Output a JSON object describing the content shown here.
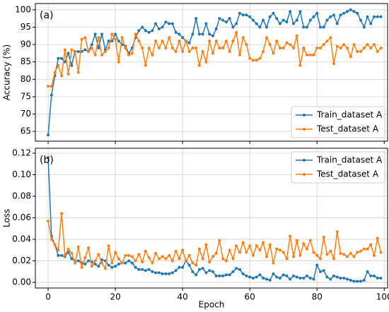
{
  "chart_data": [
    {
      "type": "line",
      "panel_label": "(a)",
      "ylabel": "Accuracy (%)",
      "x": [
        0,
        1,
        2,
        3,
        4,
        5,
        6,
        7,
        8,
        9,
        10,
        11,
        12,
        13,
        14,
        15,
        16,
        17,
        18,
        19,
        20,
        21,
        22,
        23,
        24,
        25,
        26,
        27,
        28,
        29,
        30,
        31,
        32,
        33,
        34,
        35,
        36,
        37,
        38,
        39,
        40,
        41,
        42,
        43,
        44,
        45,
        46,
        47,
        48,
        49,
        50,
        51,
        52,
        53,
        54,
        55,
        56,
        57,
        58,
        59,
        60,
        61,
        62,
        63,
        64,
        65,
        66,
        67,
        68,
        69,
        70,
        71,
        72,
        73,
        74,
        75,
        76,
        77,
        78,
        79,
        80,
        81,
        82,
        83,
        84,
        85,
        86,
        87,
        88,
        89,
        90,
        91,
        92,
        93,
        94,
        95,
        96,
        97,
        98,
        99
      ],
      "xlim": [
        -3.8,
        101
      ],
      "ylim": [
        62.2,
        101.8
      ],
      "yticks": [
        65,
        70,
        75,
        80,
        85,
        90,
        95,
        100
      ],
      "grid": true,
      "legend": "lower right",
      "series": [
        {
          "name": "Train_dataset A",
          "color": "#1f77b4",
          "values": [
            64,
            75.5,
            81,
            86,
            86,
            85,
            87.5,
            84,
            88,
            88,
            88,
            88.5,
            88,
            90,
            93,
            89,
            93,
            88.5,
            91,
            91,
            93,
            91,
            90,
            89.5,
            87.5,
            89,
            92,
            94,
            95,
            94,
            93.5,
            94,
            96,
            94.5,
            95,
            96.5,
            96,
            96,
            93.5,
            93,
            92,
            91,
            90.5,
            93,
            97.5,
            93,
            93,
            96,
            93,
            92.5,
            94.5,
            97.5,
            97,
            96.5,
            97.5,
            95,
            96,
            99,
            98.5,
            98.5,
            98,
            97,
            96,
            95,
            97,
            95,
            98,
            99,
            97.5,
            96,
            97,
            96.5,
            99.5,
            96,
            97,
            99.5,
            95,
            95,
            97,
            98,
            99,
            95,
            95,
            97,
            98,
            98.5,
            96,
            98.5,
            99,
            99.5,
            100,
            99.5,
            99,
            97,
            95,
            98,
            96,
            98,
            98,
            98
          ]
        },
        {
          "name": "Test_dataset A",
          "color": "#ff7f0e",
          "values": [
            78,
            78,
            82,
            84,
            81,
            88.5,
            81.5,
            88.5,
            88,
            82,
            91.5,
            92,
            88,
            89,
            87,
            92,
            87,
            88,
            89,
            93,
            91.5,
            85,
            92,
            89,
            87,
            87.5,
            93,
            91,
            89,
            84,
            89,
            87,
            91,
            89,
            91,
            89,
            92,
            89,
            88,
            91,
            88,
            91,
            88,
            89,
            89,
            84,
            88,
            85,
            91,
            87.5,
            91,
            89,
            89,
            91,
            88,
            91,
            93.5,
            87,
            92,
            90,
            86,
            85.5,
            85.5,
            86,
            88,
            92,
            90,
            87.5,
            91,
            89,
            89,
            90.5,
            90,
            89,
            92.5,
            84,
            89,
            87,
            87,
            87,
            89,
            89,
            90,
            91,
            92,
            84.5,
            89.5,
            89,
            90,
            89,
            86.5,
            90,
            88,
            88,
            89,
            90,
            89,
            90,
            88,
            89
          ]
        }
      ]
    },
    {
      "type": "line",
      "panel_label": "(b)",
      "ylabel": "Loss",
      "xlabel": "Epoch",
      "x": [
        0,
        1,
        2,
        3,
        4,
        5,
        6,
        7,
        8,
        9,
        10,
        11,
        12,
        13,
        14,
        15,
        16,
        17,
        18,
        19,
        20,
        21,
        22,
        23,
        24,
        25,
        26,
        27,
        28,
        29,
        30,
        31,
        32,
        33,
        34,
        35,
        36,
        37,
        38,
        39,
        40,
        41,
        42,
        43,
        44,
        45,
        46,
        47,
        48,
        49,
        50,
        51,
        52,
        53,
        54,
        55,
        56,
        57,
        58,
        59,
        60,
        61,
        62,
        63,
        64,
        65,
        66,
        67,
        68,
        69,
        70,
        71,
        72,
        73,
        74,
        75,
        76,
        77,
        78,
        79,
        80,
        81,
        82,
        83,
        84,
        85,
        86,
        87,
        88,
        89,
        90,
        91,
        92,
        93,
        94,
        95,
        96,
        97,
        98,
        99
      ],
      "xlim": [
        -3.8,
        101
      ],
      "xticks": [
        0,
        20,
        40,
        60,
        80,
        100
      ],
      "ylim": [
        -0.0052,
        0.1246
      ],
      "yticks": [
        {
          "value": 0,
          "label": "0.00"
        },
        0.02,
        0.04,
        0.06,
        0.08,
        {
          "value": 0.1,
          "label": "0.10"
        },
        0.12
      ],
      "grid": true,
      "legend": "upper right",
      "series": [
        {
          "name": "Train_dataset A",
          "color": "#1f77b4",
          "values": [
            0.116,
            0.043,
            0.035,
            0.025,
            0.025,
            0.024,
            0.028,
            0.022,
            0.02,
            0.02,
            0.018,
            0.017,
            0.02,
            0.019,
            0.017,
            0.015,
            0.021,
            0.02,
            0.016,
            0.014,
            0.015,
            0.017,
            0.018,
            0.018,
            0.02,
            0.018,
            0.014,
            0.012,
            0.012,
            0.011,
            0.012,
            0.01,
            0.009,
            0.009,
            0.008,
            0.008,
            0.008,
            0.009,
            0.011,
            0.014,
            0.014,
            0.02,
            0.016,
            0.01,
            0.007,
            0.012,
            0.013,
            0.009,
            0.011,
            0.01,
            0.006,
            0.006,
            0.006,
            0.007,
            0.007,
            0.01,
            0.013,
            0.012,
            0.008,
            0.006,
            0.005,
            0.004,
            0.005,
            0.007,
            0.004,
            0.003,
            0.002,
            0.008,
            0.005,
            0.004,
            0.007,
            0.006,
            0.003,
            0.006,
            0.005,
            0.004,
            0.004,
            0.006,
            0.004,
            0.003,
            0.016,
            0.01,
            0.011,
            0.005,
            0.003,
            0.006,
            0.005,
            0.004,
            0.004,
            0.003,
            0.002,
            0.001,
            0.001,
            0.001,
            0.002,
            0.01,
            0.006,
            0.006,
            0.004,
            0.004
          ]
        },
        {
          "name": "Test_dataset A",
          "color": "#ff7f0e",
          "values": [
            0.057,
            0.04,
            0.035,
            0.03,
            0.064,
            0.025,
            0.031,
            0.027,
            0.018,
            0.033,
            0.014,
            0.023,
            0.032,
            0.015,
            0.02,
            0.026,
            0.018,
            0.013,
            0.034,
            0.018,
            0.028,
            0.022,
            0.018,
            0.025,
            0.025,
            0.024,
            0.02,
            0.026,
            0.019,
            0.029,
            0.023,
            0.018,
            0.027,
            0.022,
            0.024,
            0.022,
            0.025,
            0.02,
            0.029,
            0.022,
            0.03,
            0.02,
            0.025,
            0.018,
            0.016,
            0.031,
            0.022,
            0.035,
            0.019,
            0.024,
            0.027,
            0.039,
            0.022,
            0.02,
            0.03,
            0.022,
            0.034,
            0.028,
            0.037,
            0.028,
            0.034,
            0.025,
            0.034,
            0.03,
            0.037,
            0.024,
            0.035,
            0.018,
            0.031,
            0.03,
            0.028,
            0.022,
            0.043,
            0.024,
            0.039,
            0.025,
            0.036,
            0.031,
            0.039,
            0.028,
            0.025,
            0.022,
            0.042,
            0.026,
            0.029,
            0.022,
            0.047,
            0.027,
            0.026,
            0.024,
            0.027,
            0.024,
            0.028,
            0.029,
            0.031,
            0.031,
            0.035,
            0.025,
            0.041,
            0.028
          ]
        }
      ]
    }
  ]
}
